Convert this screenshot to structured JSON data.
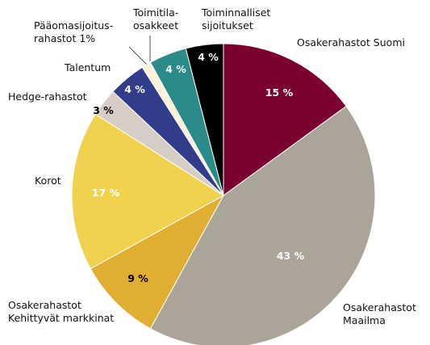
{
  "chart_data": {
    "type": "pie",
    "categories": [
      [
        "Osakerahastot Suomi"
      ],
      [
        "Osakerahastot",
        "Maailma"
      ],
      [
        "Osakerahastot",
        "Kehittyvät markkinat"
      ],
      [
        "Korot"
      ],
      [
        "Hedge-rahastot"
      ],
      [
        "Talentum"
      ],
      [
        "Pääomasijoitus-",
        "rahastot 1%"
      ],
      [
        "Toimitila-",
        "osakkeet"
      ],
      [
        "Toiminnalliset",
        "sijoitukset"
      ]
    ],
    "values": [
      15,
      43,
      9,
      17,
      3,
      4,
      1,
      4,
      4
    ],
    "value_labels": [
      "15 %",
      "43 %",
      "9 %",
      "17 %",
      "3 %",
      "4 %",
      null,
      "4 %",
      "4 %"
    ],
    "colors": [
      "#7a0030",
      "#aba498",
      "#e0ae31",
      "#f0d24f",
      "#d5cdc6",
      "#333c8a",
      "#fbf4da",
      "#2b8b88",
      "#000000"
    ],
    "value_label_colors": [
      "#ffffff",
      "#ffffff",
      "#000000",
      "#ffffff",
      "#000000",
      "#ffffff",
      null,
      "#ffffff",
      "#ffffff"
    ]
  }
}
